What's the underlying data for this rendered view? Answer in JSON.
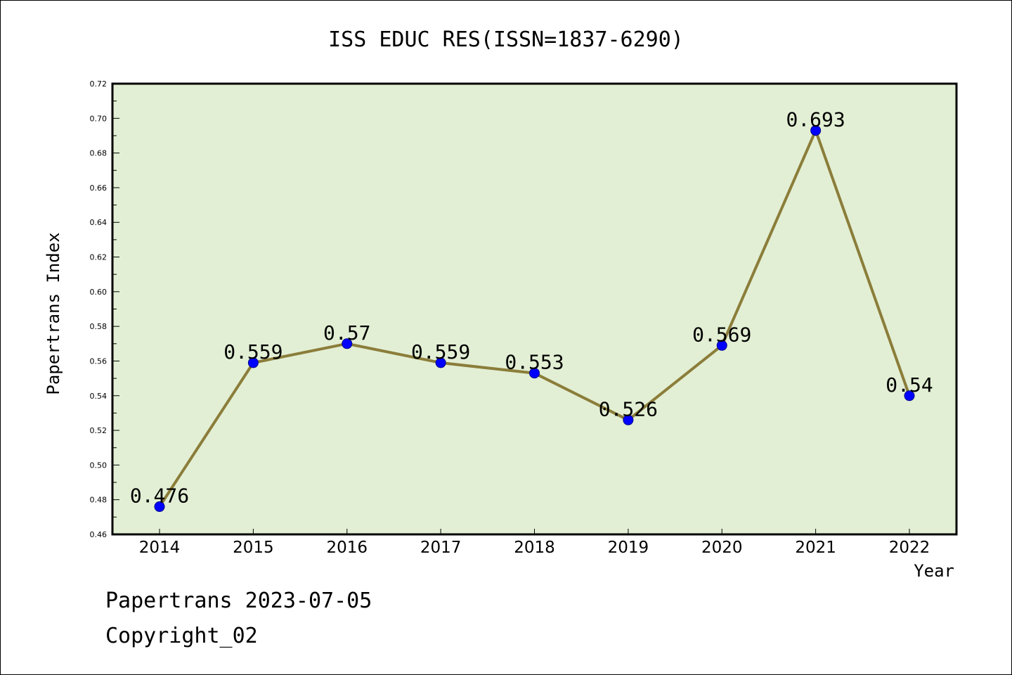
{
  "chart_data": {
    "type": "line",
    "title": "ISS EDUC RES(ISSN=1837-6290)",
    "xlabel": "Year",
    "ylabel": "Papertrans Index",
    "categories": [
      "2014",
      "2015",
      "2016",
      "2017",
      "2018",
      "2019",
      "2020",
      "2021",
      "2022"
    ],
    "series": [
      {
        "values": [
          0.476,
          0.559,
          0.57,
          0.559,
          0.553,
          0.526,
          0.569,
          0.693,
          0.54
        ],
        "labels": [
          "0.476",
          "0.559",
          "0.57",
          "0.559",
          "0.553",
          "0.526",
          "0.569",
          "0.693",
          "0.54"
        ]
      }
    ],
    "ylim": [
      0.46,
      0.72
    ],
    "yticks": [
      "0.46",
      "0.48",
      "0.50",
      "0.52",
      "0.54",
      "0.56",
      "0.58",
      "0.60",
      "0.62",
      "0.64",
      "0.66",
      "0.68",
      "0.70",
      "0.72"
    ],
    "grid": false,
    "colors": {
      "plot_background": "#e2efd4",
      "line": "#8b7d3a",
      "marker": "#0000ff"
    }
  },
  "footer": {
    "date_line": "Papertrans 2023-07-05",
    "copyright": "Copyright_02"
  }
}
